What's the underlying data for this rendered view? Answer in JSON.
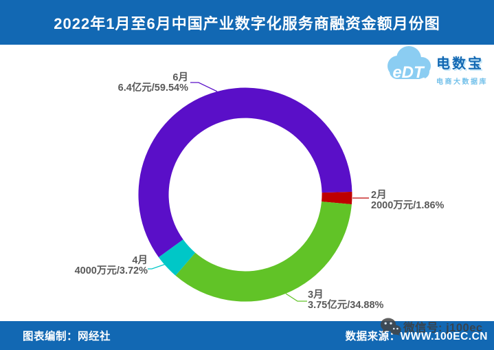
{
  "header": {
    "title": "2022年1月至6月中国产业数字化服务商融资金额月份图"
  },
  "logo": {
    "cloud_text": "eDT",
    "brand": "电数宝",
    "subtitle": "电商大数据库"
  },
  "chart_data": {
    "type": "pie",
    "subtype": "donut",
    "title": "2022年1月至6月中国产业数字化服务商融资金额月份图",
    "start_angle_deg": 1.5,
    "direction": "clockwise",
    "inner_radius_ratio": 0.72,
    "slices": [
      {
        "month": "2月",
        "amount": "2000万元",
        "percent": 1.86,
        "label": "2000万元/1.86%",
        "color": "#BE0000"
      },
      {
        "month": "3月",
        "amount": "3.75亿元",
        "percent": 34.88,
        "label": "3.75亿元/34.88%",
        "color": "#61C327"
      },
      {
        "month": "4月",
        "amount": "4000万元",
        "percent": 3.72,
        "label": "4000万元/3.72%",
        "color": "#00C7C7"
      },
      {
        "month": "6月",
        "amount": "6.4亿元",
        "percent": 59.54,
        "label": "6.4亿元/59.54%",
        "color": "#5A0FC8"
      }
    ]
  },
  "footer": {
    "left": "图表编制：网经社",
    "right": "数据来源：WWW.100EC.CN"
  },
  "watermark": {
    "text": "微信号: j100ec"
  },
  "theme": {
    "bar_blue": "#1268B3",
    "label_gray": "#595959",
    "logo_light_blue": "#8BCDF2"
  }
}
